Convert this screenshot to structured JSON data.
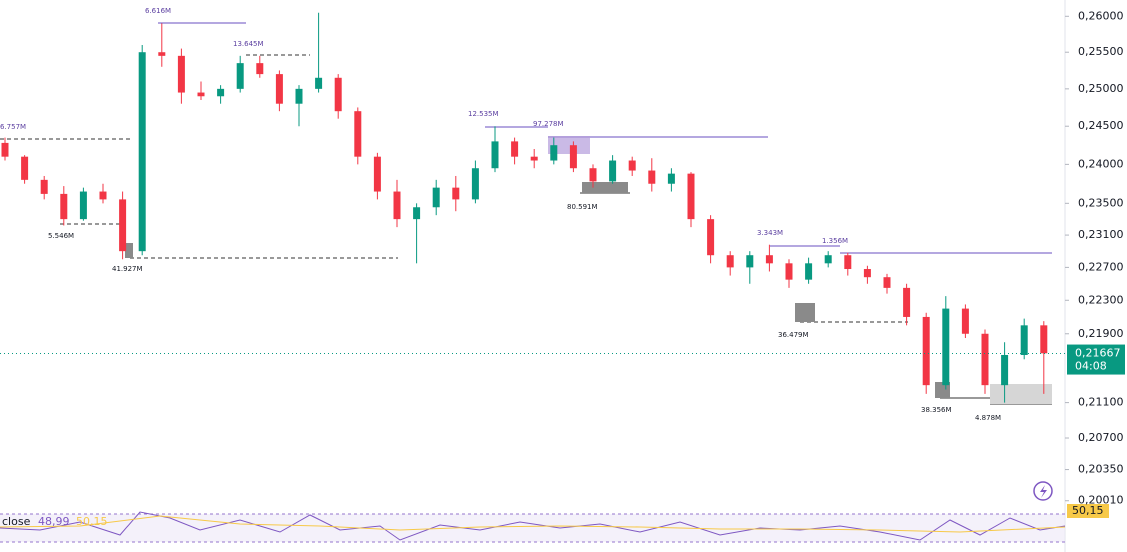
{
  "chart_data": {
    "type": "candlestick",
    "open": [
      0.2428,
      0.241,
      0.238,
      0.2362,
      0.233,
      0.2365,
      0.2355,
      0.229,
      0.255,
      0.2545,
      0.2495,
      0.249,
      0.25,
      0.2535,
      0.252,
      0.248,
      0.25,
      0.2515,
      0.247,
      0.241,
      0.2365,
      0.233,
      0.2345,
      0.237,
      0.2355,
      0.2395,
      0.243,
      0.241,
      0.2405,
      0.2425,
      0.2395,
      0.2378,
      0.2405,
      0.2392,
      0.2375,
      0.2388,
      0.233,
      0.2285,
      0.227,
      0.2285,
      0.2275,
      0.2255,
      0.2275,
      0.2285,
      0.2268,
      0.2258,
      0.2245,
      0.221,
      0.213,
      0.222,
      0.219,
      0.213,
      0.2165,
      0.22
    ],
    "high": [
      0.2435,
      0.2412,
      0.2385,
      0.2372,
      0.237,
      0.2375,
      0.2365,
      0.256,
      0.259,
      0.2555,
      0.251,
      0.2505,
      0.2545,
      0.2545,
      0.2525,
      0.2505,
      0.2605,
      0.252,
      0.2475,
      0.2415,
      0.238,
      0.235,
      0.238,
      0.2385,
      0.2405,
      0.245,
      0.2435,
      0.242,
      0.2435,
      0.243,
      0.24,
      0.2412,
      0.241,
      0.2408,
      0.2395,
      0.239,
      0.2335,
      0.229,
      0.229,
      0.2298,
      0.228,
      0.2282,
      0.229,
      0.2288,
      0.2272,
      0.2262,
      0.225,
      0.2215,
      0.2235,
      0.2225,
      0.2195,
      0.218,
      0.2208,
      0.2205
    ],
    "low": [
      0.2405,
      0.2375,
      0.2355,
      0.2322,
      0.2328,
      0.235,
      0.228,
      0.2285,
      0.253,
      0.248,
      0.2485,
      0.248,
      0.2495,
      0.2515,
      0.247,
      0.245,
      0.2495,
      0.246,
      0.24,
      0.2355,
      0.232,
      0.2275,
      0.2335,
      0.234,
      0.235,
      0.239,
      0.24,
      0.2395,
      0.24,
      0.239,
      0.237,
      0.2375,
      0.2385,
      0.2365,
      0.2365,
      0.232,
      0.2275,
      0.226,
      0.225,
      0.2265,
      0.2245,
      0.225,
      0.227,
      0.226,
      0.225,
      0.2238,
      0.22,
      0.212,
      0.2125,
      0.2185,
      0.212,
      0.211,
      0.216,
      0.212
    ],
    "close": [
      0.241,
      0.238,
      0.2362,
      0.233,
      0.2365,
      0.2355,
      0.229,
      0.255,
      0.2545,
      0.2495,
      0.249,
      0.25,
      0.2535,
      0.252,
      0.248,
      0.25,
      0.2515,
      0.247,
      0.241,
      0.2365,
      0.233,
      0.2345,
      0.237,
      0.2355,
      0.2395,
      0.243,
      0.241,
      0.2405,
      0.2425,
      0.2395,
      0.2378,
      0.2405,
      0.2392,
      0.2375,
      0.2388,
      0.233,
      0.2285,
      0.227,
      0.2285,
      0.2275,
      0.2255,
      0.2275,
      0.2285,
      0.2268,
      0.2258,
      0.2245,
      0.221,
      0.213,
      0.222,
      0.219,
      0.213,
      0.2165,
      0.22,
      0.2167
    ],
    "up_color": "#089981",
    "down_color": "#f23645",
    "log_scale": true,
    "ylim": [
      0.1991,
      0.2623
    ],
    "yticks": [
      {
        "value": 0.26,
        "label": "0,26000"
      },
      {
        "value": 0.255,
        "label": "0,25500"
      },
      {
        "value": 0.25,
        "label": "0,25000"
      },
      {
        "value": 0.245,
        "label": "0,24500"
      },
      {
        "value": 0.24,
        "label": "0,24000"
      },
      {
        "value": 0.235,
        "label": "0,23500"
      },
      {
        "value": 0.231,
        "label": "0,23100"
      },
      {
        "value": 0.227,
        "label": "0,22700"
      },
      {
        "value": 0.223,
        "label": "0,22300"
      },
      {
        "value": 0.219,
        "label": "0,21900"
      },
      {
        "value": 0.211,
        "label": "0,21100"
      },
      {
        "value": 0.207,
        "label": "0,20700"
      },
      {
        "value": 0.2035,
        "label": "0,20350"
      },
      {
        "value": 0.2001,
        "label": "0,20010"
      }
    ],
    "last_price": {
      "value": 0.21667,
      "label": "0,21667"
    },
    "countdown": "04:08",
    "annotations": [
      "6.616M",
      "13.645M",
      "6.757M",
      "5.546M",
      "41.927M",
      "12.535M",
      "97.278M",
      "80.591M",
      "3.343M",
      "1.356M",
      "36.479M",
      "38.356M",
      "4.878M"
    ],
    "indicator": {
      "name": "close",
      "values": [
        48.99,
        50.15
      ],
      "value_labels": [
        "48,99",
        "50,15"
      ],
      "colors": [
        "#7e57c2",
        "#f7c948"
      ]
    }
  }
}
